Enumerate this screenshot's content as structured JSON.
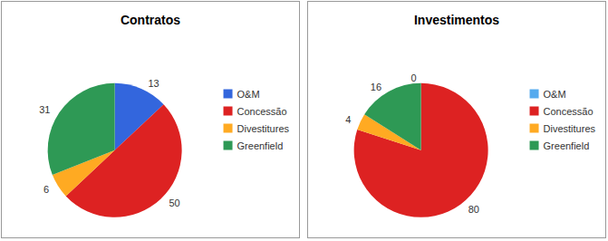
{
  "chart_data": [
    {
      "type": "pie",
      "title": "Contratos",
      "categories": [
        "O&M",
        "Concessão",
        "Divestitures",
        "Greenfield"
      ],
      "values": [
        13,
        50,
        6,
        31
      ],
      "colors": [
        "#3366dd",
        "#dd2222",
        "#ffaa22",
        "#2e9955"
      ],
      "legend": "right",
      "data_labels": true
    },
    {
      "type": "pie",
      "title": "Investimentos",
      "categories": [
        "O&M",
        "Concessão",
        "Divestitures",
        "Greenfield"
      ],
      "values": [
        0,
        80,
        4,
        16
      ],
      "colors": [
        "#55aaee",
        "#dd2222",
        "#ffaa22",
        "#2e9955"
      ],
      "legend": "right",
      "data_labels": true
    }
  ]
}
